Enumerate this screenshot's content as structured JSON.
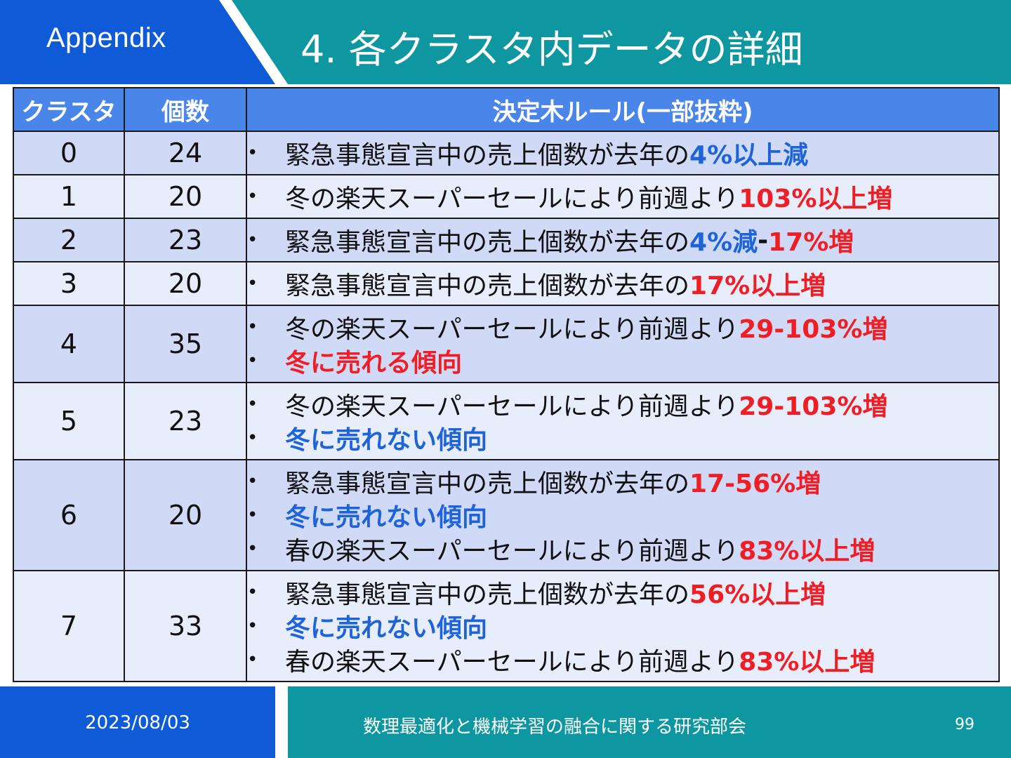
{
  "header": {
    "section": "Appendix",
    "title": "4. 各クラスタ内データの詳細"
  },
  "table": {
    "columns": [
      "クラスタ",
      "個数",
      "決定木ルール(一部抜粋)"
    ],
    "rows": [
      {
        "cluster": "0",
        "count": "24",
        "rules": [
          [
            {
              "t": "緊急事態宣言中の売上個数が去年の",
              "c": "plain"
            },
            {
              "t": "4%以上減",
              "c": "blue"
            }
          ]
        ]
      },
      {
        "cluster": "1",
        "count": "20",
        "rules": [
          [
            {
              "t": "冬の楽天スーパーセールにより前週より",
              "c": "plain"
            },
            {
              "t": "103%以上増",
              "c": "red"
            }
          ]
        ]
      },
      {
        "cluster": "2",
        "count": "23",
        "rules": [
          [
            {
              "t": "緊急事態宣言中の売上個数が去年の",
              "c": "plain"
            },
            {
              "t": "4%減",
              "c": "blue"
            },
            {
              "t": "-",
              "c": "blk"
            },
            {
              "t": "17%増",
              "c": "red"
            }
          ]
        ]
      },
      {
        "cluster": "3",
        "count": "20",
        "rules": [
          [
            {
              "t": "緊急事態宣言中の売上個数が去年の",
              "c": "plain"
            },
            {
              "t": "17%以上増",
              "c": "red"
            }
          ]
        ]
      },
      {
        "cluster": "4",
        "count": "35",
        "rules": [
          [
            {
              "t": "冬の楽天スーパーセールにより前週より",
              "c": "plain"
            },
            {
              "t": "29-103%増",
              "c": "red"
            }
          ],
          [
            {
              "t": "冬に売れる傾向",
              "c": "red"
            }
          ]
        ]
      },
      {
        "cluster": "5",
        "count": "23",
        "rules": [
          [
            {
              "t": "冬の楽天スーパーセールにより前週より",
              "c": "plain"
            },
            {
              "t": "29-103%増",
              "c": "red"
            }
          ],
          [
            {
              "t": "冬に売れない傾向",
              "c": "blue"
            }
          ]
        ]
      },
      {
        "cluster": "6",
        "count": "20",
        "rules": [
          [
            {
              "t": "緊急事態宣言中の売上個数が去年の",
              "c": "plain"
            },
            {
              "t": "17-56%増",
              "c": "red"
            }
          ],
          [
            {
              "t": "冬に売れない傾向",
              "c": "blue"
            }
          ],
          [
            {
              "t": "春の楽天スーパーセールにより前週より",
              "c": "plain"
            },
            {
              "t": "83%以上増",
              "c": "red"
            }
          ]
        ]
      },
      {
        "cluster": "7",
        "count": "33",
        "rules": [
          [
            {
              "t": "緊急事態宣言中の売上個数が去年の",
              "c": "plain"
            },
            {
              "t": "56%以上増",
              "c": "red"
            }
          ],
          [
            {
              "t": "冬に売れない傾向",
              "c": "blue"
            }
          ],
          [
            {
              "t": "春の楽天スーパーセールにより前週より",
              "c": "plain"
            },
            {
              "t": "83%以上増",
              "c": "red"
            }
          ]
        ]
      }
    ]
  },
  "footer": {
    "date": "2023/08/03",
    "conference": "数理最適化と機械学習の融合に関する研究部会",
    "page": "99"
  },
  "colors": {
    "header_blue": "#0f5ad6",
    "header_teal": "#0e97a0",
    "table_header": "#4a86ea",
    "row_odd": "#d0d9f6",
    "row_even": "#e8edfb",
    "highlight_red": "#ef1e24",
    "highlight_blue": "#1e64d8"
  }
}
